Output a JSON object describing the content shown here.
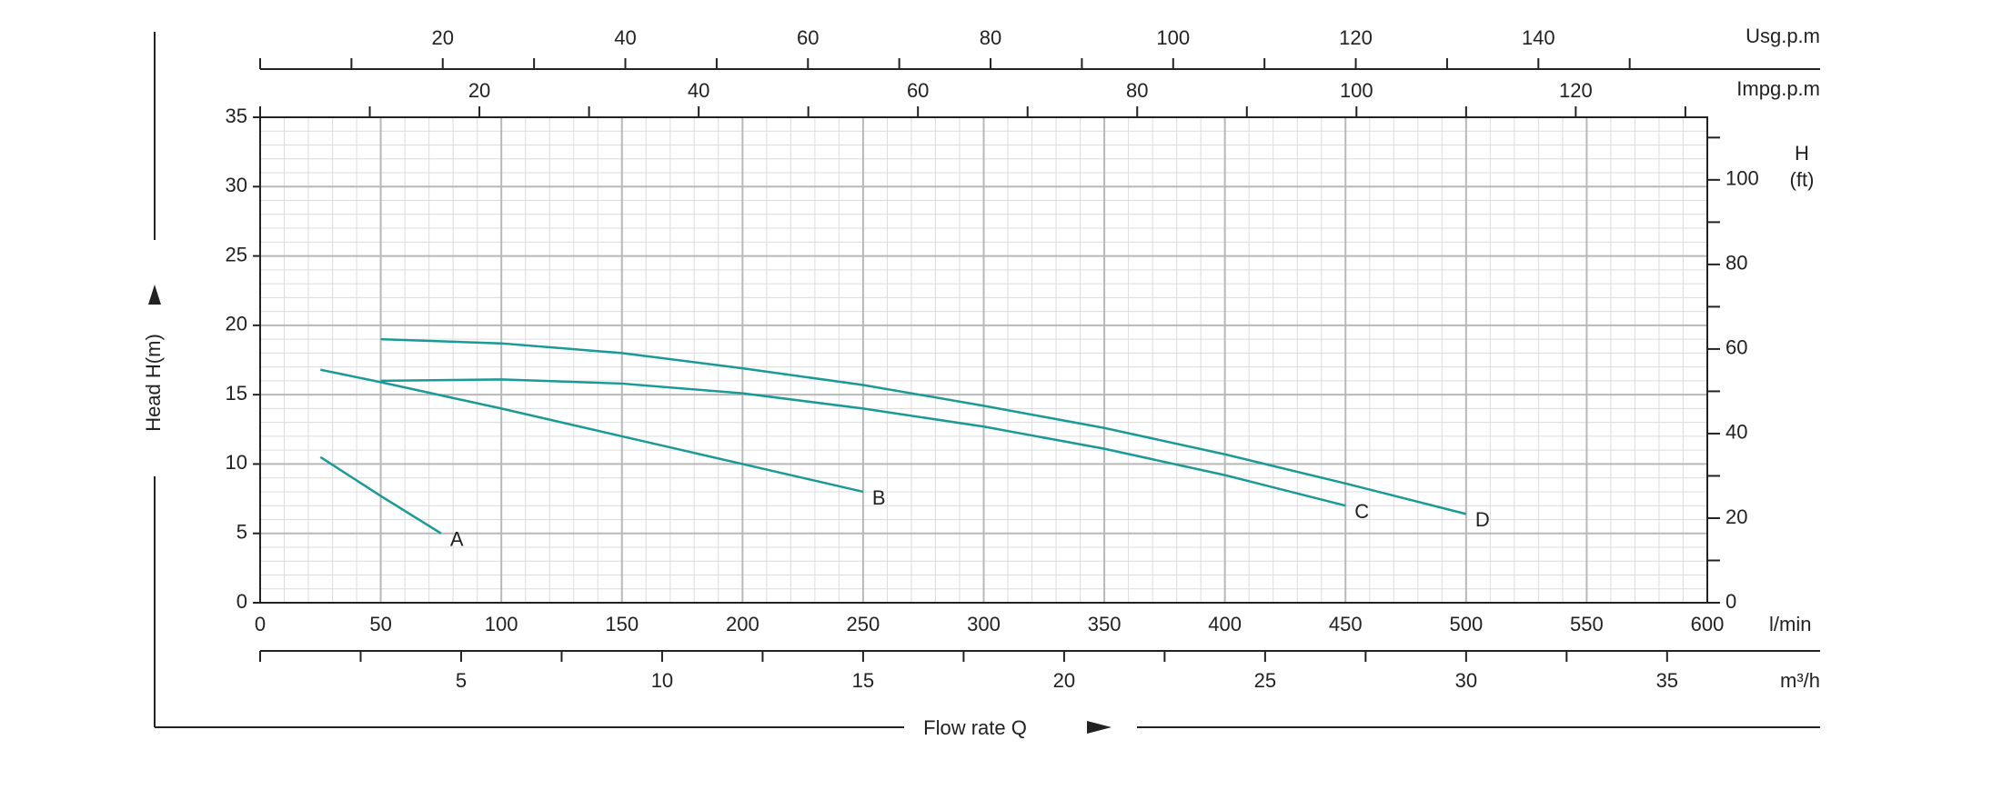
{
  "chart_data": {
    "type": "line",
    "y_label": "Head H(m)",
    "x_label": "Flow rate Q",
    "x_unit": "l/min",
    "y2_label": "H",
    "y2_unit": "(ft)",
    "xlim": [
      0,
      600
    ],
    "xticks": [
      0,
      50,
      100,
      150,
      200,
      250,
      300,
      350,
      400,
      450,
      500,
      550,
      600
    ],
    "ylim": [
      0,
      35
    ],
    "yticks": [
      0,
      5,
      10,
      15,
      20,
      25,
      30,
      35
    ],
    "y2lim": [
      0,
      114.8
    ],
    "y2ticks": [
      0,
      20,
      40,
      60,
      80,
      100
    ],
    "y2_minor_ticks": [
      10,
      30,
      50,
      70,
      90,
      110
    ],
    "grid": true,
    "minor_grid": {
      "x": 10,
      "y": 1
    },
    "extra_x_axes": [
      {
        "label": "m³/h",
        "position": "bottom",
        "lim": [
          0,
          36
        ],
        "ticks": [
          5,
          10,
          15,
          20,
          25,
          30,
          35
        ],
        "minor_ticks": [
          0,
          2.5,
          7.5,
          12.5,
          17.5,
          22.5,
          27.5,
          32.5
        ]
      },
      {
        "label": "Usg.p.m",
        "position": "top",
        "lim": [
          0,
          158.5
        ],
        "ticks": [
          20,
          40,
          60,
          80,
          100,
          120,
          140
        ],
        "minor_ticks": [
          0,
          10,
          30,
          50,
          70,
          90,
          110,
          130,
          150
        ]
      },
      {
        "label": "Impg.p.m",
        "position": "top-inner",
        "lim": [
          0,
          132
        ],
        "ticks": [
          20,
          40,
          60,
          80,
          100,
          120
        ],
        "minor_ticks": [
          0,
          10,
          30,
          50,
          70,
          90,
          110,
          130
        ]
      }
    ],
    "series": [
      {
        "name": "A",
        "color": "#1a9a96",
        "x": [
          25,
          50,
          75
        ],
        "values": [
          10.5,
          7.7,
          5.0
        ]
      },
      {
        "name": "B",
        "color": "#1a9a96",
        "x": [
          25,
          50,
          100,
          150,
          200,
          250
        ],
        "values": [
          16.8,
          15.9,
          14.0,
          12.0,
          10.0,
          8.0
        ]
      },
      {
        "name": "C",
        "color": "#1a9a96",
        "x": [
          50,
          100,
          150,
          200,
          250,
          300,
          350,
          400,
          450
        ],
        "values": [
          16.0,
          16.1,
          15.8,
          15.1,
          14.0,
          12.7,
          11.1,
          9.2,
          7.0
        ]
      },
      {
        "name": "D",
        "color": "#1a9a96",
        "x": [
          50,
          100,
          150,
          200,
          250,
          300,
          350,
          400,
          450,
          500
        ],
        "values": [
          19.0,
          18.7,
          18.0,
          16.9,
          15.7,
          14.2,
          12.6,
          10.7,
          8.6,
          6.4
        ]
      }
    ]
  }
}
